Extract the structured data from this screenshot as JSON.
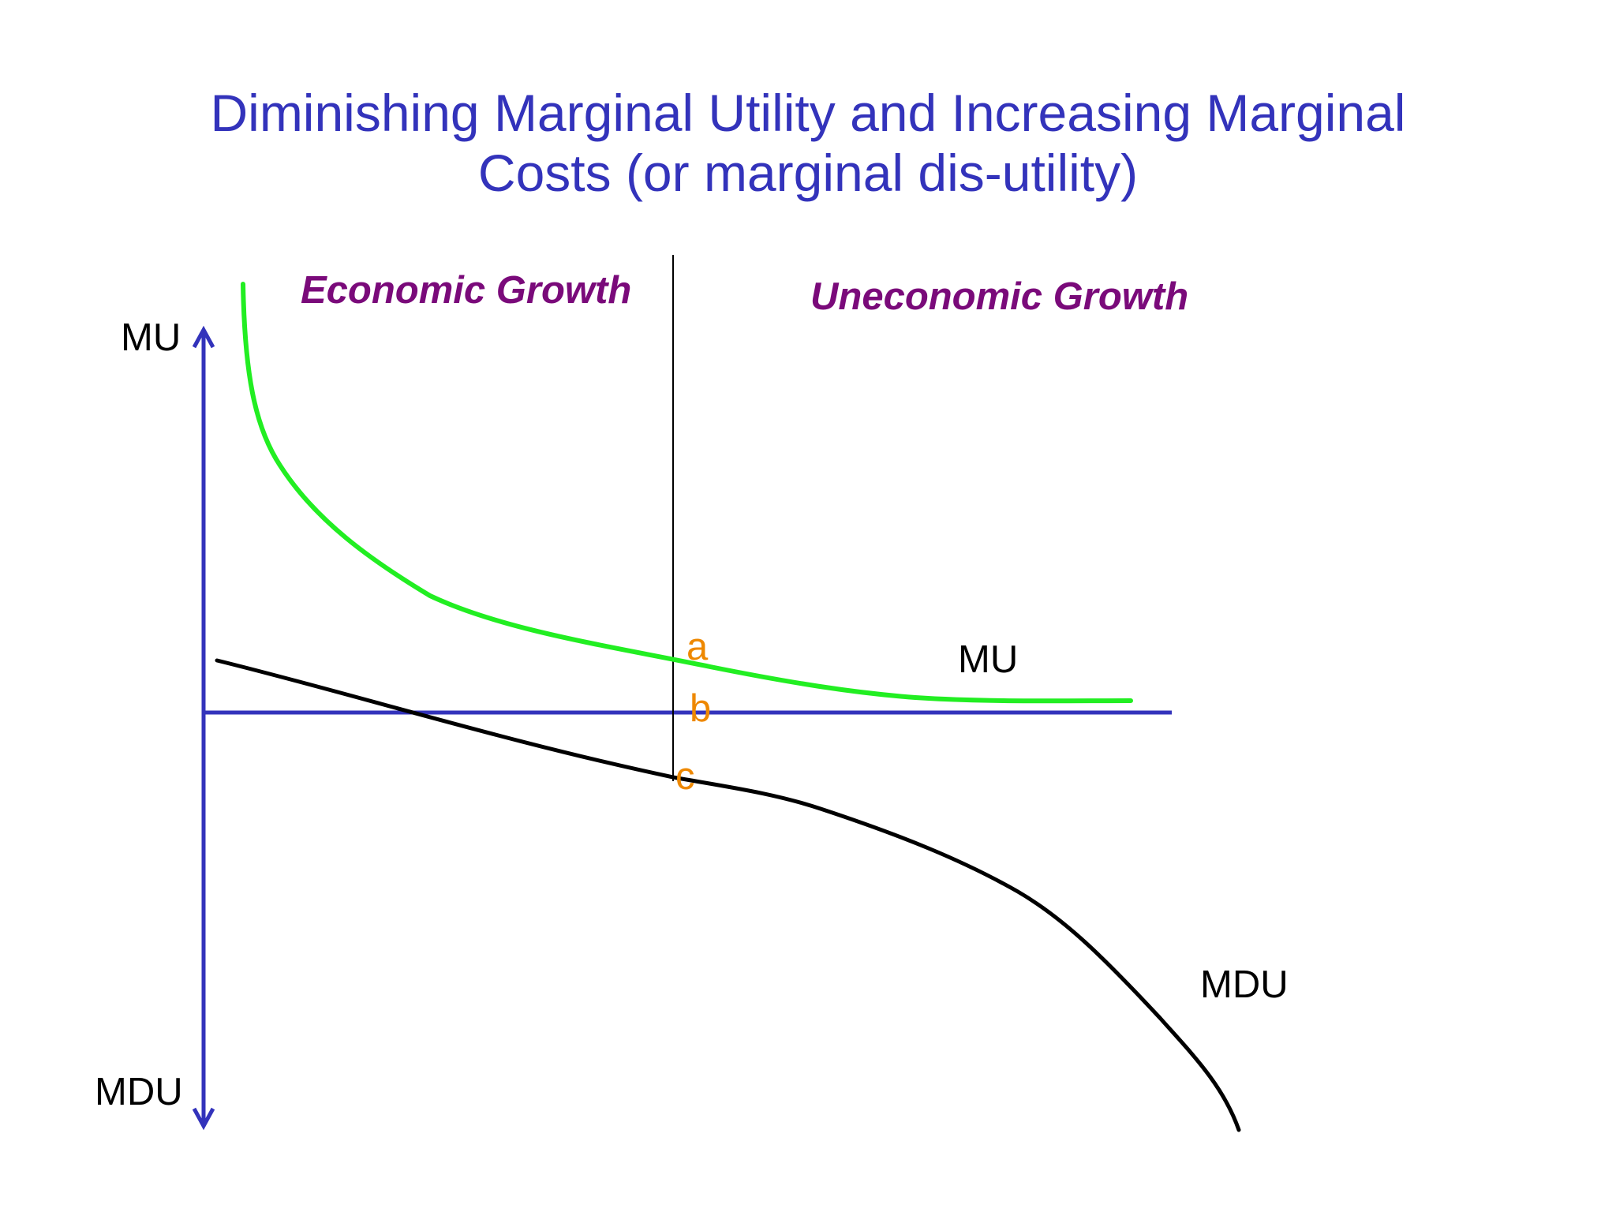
{
  "title": {
    "line1": "Diminishing Marginal Utility and Increasing Marginal",
    "line2": "Costs (or marginal dis-utility)"
  },
  "regions": {
    "economic": "Economic Growth",
    "uneconomic": "Uneconomic Growth"
  },
  "axes": {
    "y_positive_label": "MU",
    "y_negative_label": "MDU"
  },
  "curves": {
    "mu": {
      "label": "MU",
      "color": "#22ee22"
    },
    "mdu": {
      "label": "MDU",
      "color": "#000000"
    }
  },
  "points": {
    "a": "a",
    "b": "b",
    "c": "c"
  },
  "colors": {
    "title": "#3333bb",
    "axis": "#3333bb",
    "region_label": "#7a0a7a",
    "point_label": "#ee8800"
  }
}
